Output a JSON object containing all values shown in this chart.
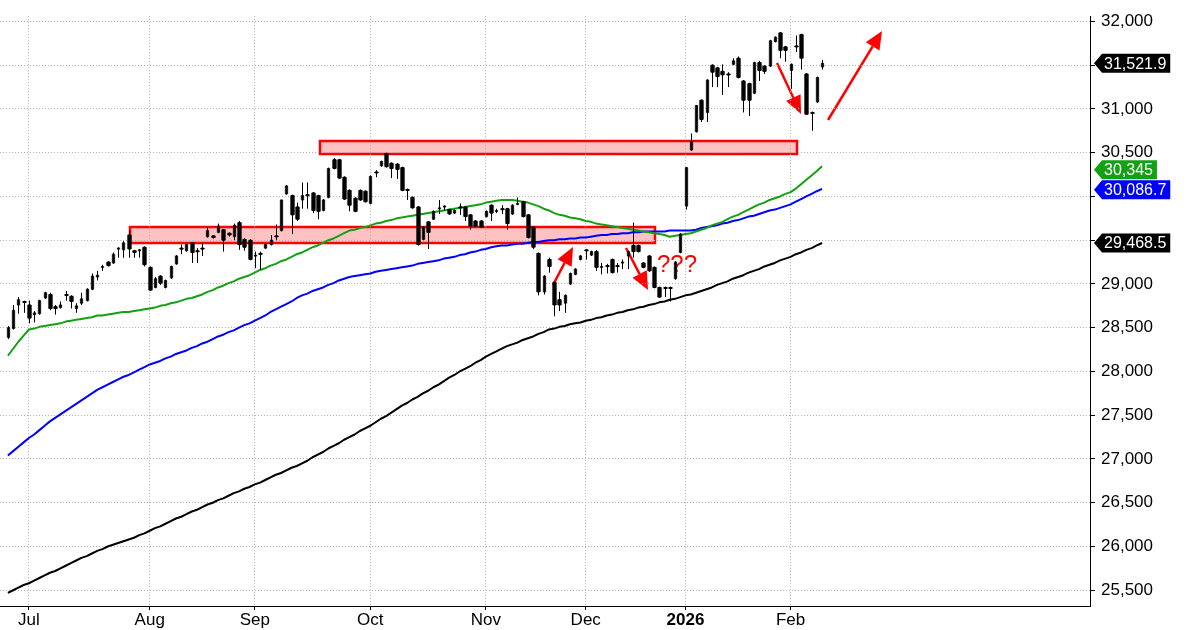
{
  "chart_data": {
    "type": "candlestick",
    "color": "#000000",
    "grid": true,
    "categories": [
      null,
      null,
      null,
      null,
      "Jul",
      null,
      null,
      null,
      null,
      null,
      null,
      null,
      null,
      null,
      null,
      null,
      null,
      null,
      null,
      null,
      null,
      null,
      null,
      null,
      null,
      null,
      null,
      "Aug",
      null,
      null,
      null,
      null,
      null,
      null,
      null,
      null,
      null,
      null,
      null,
      null,
      null,
      null,
      null,
      null,
      null,
      null,
      null,
      "Sep",
      null,
      null,
      null,
      null,
      null,
      null,
      null,
      null,
      null,
      null,
      null,
      null,
      null,
      null,
      null,
      null,
      null,
      null,
      null,
      null,
      null,
      "Oct",
      null,
      null,
      null,
      null,
      null,
      null,
      null,
      null,
      null,
      null,
      null,
      null,
      null,
      null,
      null,
      null,
      null,
      null,
      null,
      null,
      null,
      "Nov",
      null,
      null,
      null,
      null,
      null,
      null,
      null,
      null,
      null,
      null,
      null,
      null,
      null,
      null,
      null,
      null,
      null,
      null,
      "Dec",
      null,
      null,
      null,
      null,
      null,
      null,
      null,
      null,
      null,
      null,
      null,
      null,
      null,
      null,
      null,
      null,
      null,
      null,
      "2026",
      null,
      null,
      null,
      null,
      null,
      null,
      null,
      null,
      null,
      null,
      null,
      null,
      null,
      null,
      null,
      null,
      null,
      null,
      null,
      "Feb",
      null,
      null,
      null,
      null,
      null,
      null
    ],
    "ohlc": [
      [
        28390,
        28520,
        28370,
        28500
      ],
      [
        28490,
        28760,
        28480,
        28700
      ],
      [
        28760,
        28850,
        28660,
        28820
      ],
      [
        28800,
        28810,
        28670,
        28790
      ],
      [
        28760,
        28810,
        28550,
        28610
      ],
      [
        28650,
        28690,
        28560,
        28670
      ],
      [
        28660,
        28820,
        28650,
        28810
      ],
      [
        28840,
        28910,
        28830,
        28900
      ],
      [
        28880,
        28900,
        28700,
        28720
      ],
      [
        28740,
        28760,
        28650,
        28720
      ],
      [
        28730,
        28800,
        28720,
        28760
      ],
      [
        28880,
        28920,
        28810,
        28870
      ],
      [
        28860,
        28870,
        28720,
        28800
      ],
      [
        28720,
        28780,
        28670,
        28750
      ],
      [
        28780,
        28900,
        28760,
        28830
      ],
      [
        28810,
        28950,
        28800,
        28940
      ],
      [
        28940,
        29120,
        28930,
        29090
      ],
      [
        29080,
        29150,
        29040,
        29100
      ],
      [
        29190,
        29220,
        29150,
        29200
      ],
      [
        29250,
        29260,
        29200,
        29210
      ],
      [
        29240,
        29360,
        29230,
        29340
      ],
      [
        29400,
        29420,
        29300,
        29410
      ],
      [
        29390,
        29490,
        29300,
        29470
      ],
      [
        29560,
        29610,
        29300,
        29400
      ],
      [
        29380,
        29390,
        29300,
        29360
      ],
      [
        29380,
        29400,
        29300,
        29390
      ],
      [
        29420,
        29430,
        29200,
        29220
      ],
      [
        29190,
        29200,
        28920,
        28930
      ],
      [
        28960,
        29080,
        28950,
        29060
      ],
      [
        29090,
        29100,
        28990,
        29010
      ],
      [
        28960,
        29050,
        28950,
        29040
      ],
      [
        29070,
        29210,
        29060,
        29200
      ],
      [
        29230,
        29330,
        29220,
        29320
      ],
      [
        29410,
        29450,
        29340,
        29400
      ],
      [
        29380,
        29460,
        29370,
        29450
      ],
      [
        29470,
        29480,
        29240,
        29360
      ],
      [
        29380,
        29410,
        29240,
        29370
      ],
      [
        29410,
        29470,
        29320,
        29410
      ],
      [
        29540,
        29650,
        29530,
        29610
      ],
      [
        29550,
        29560,
        29520,
        29530
      ],
      [
        29590,
        29690,
        29580,
        29660
      ],
      [
        29620,
        29630,
        29370,
        29500
      ],
      [
        29580,
        29590,
        29540,
        29560
      ],
      [
        29540,
        29690,
        29500,
        29670
      ],
      [
        29700,
        29720,
        29390,
        29450
      ],
      [
        29510,
        29520,
        29380,
        29420
      ],
      [
        29500,
        29510,
        29270,
        29280
      ],
      [
        29320,
        29370,
        29180,
        29330
      ],
      [
        29350,
        29370,
        29160,
        29350
      ],
      [
        29410,
        29460,
        29400,
        29450
      ],
      [
        29450,
        29560,
        29440,
        29500
      ],
      [
        29550,
        29680,
        29500,
        29550
      ],
      [
        29610,
        29960,
        29600,
        29960
      ],
      [
        30030,
        30130,
        30020,
        30120
      ],
      [
        30010,
        30020,
        29570,
        29790
      ],
      [
        29880,
        29930,
        29720,
        29740
      ],
      [
        29960,
        30160,
        29860,
        30010
      ],
      [
        30020,
        30160,
        29860,
        30010
      ],
      [
        30040,
        30050,
        29810,
        29840
      ],
      [
        30010,
        30020,
        29740,
        29830
      ],
      [
        29840,
        29970,
        29830,
        29960
      ],
      [
        29990,
        30330,
        29980,
        30320
      ],
      [
        30420,
        30440,
        30310,
        30320
      ],
      [
        30420,
        30430,
        30200,
        30210
      ],
      [
        30220,
        30230,
        29960,
        29970
      ],
      [
        30070,
        30080,
        29830,
        29900
      ],
      [
        29980,
        29990,
        29820,
        29830
      ],
      [
        30070,
        30080,
        29950,
        29960
      ],
      [
        30060,
        30070,
        29930,
        29940
      ],
      [
        29920,
        30240,
        29910,
        30230
      ],
      [
        30280,
        30300,
        30220,
        30280
      ],
      [
        30350,
        30410,
        30340,
        30400
      ],
      [
        30490,
        30500,
        30330,
        30340
      ],
      [
        30380,
        30390,
        30210,
        30320
      ],
      [
        30370,
        30380,
        30200,
        30310
      ],
      [
        30330,
        30340,
        30060,
        30070
      ],
      [
        30080,
        30090,
        29960,
        30070
      ],
      [
        29990,
        30000,
        29860,
        29870
      ],
      [
        29880,
        29890,
        29440,
        29450
      ],
      [
        29510,
        29660,
        29500,
        29650
      ],
      [
        29710,
        29720,
        29400,
        29590
      ],
      [
        29740,
        29840,
        29730,
        29830
      ],
      [
        29860,
        29960,
        29800,
        29870
      ],
      [
        29880,
        29900,
        29840,
        29890
      ],
      [
        29850,
        29860,
        29790,
        29800
      ],
      [
        29810,
        29850,
        29800,
        29840
      ],
      [
        29880,
        29920,
        29790,
        29880
      ],
      [
        29880,
        29890,
        29720,
        29770
      ],
      [
        29790,
        29800,
        29620,
        29660
      ],
      [
        29720,
        29730,
        29650,
        29660
      ],
      [
        29720,
        29730,
        29640,
        29650
      ],
      [
        29770,
        29840,
        29760,
        29830
      ],
      [
        29900,
        29910,
        29720,
        29810
      ],
      [
        29830,
        29860,
        29810,
        29840
      ],
      [
        29860,
        29900,
        29800,
        29860
      ],
      [
        29860,
        29870,
        29620,
        29690
      ],
      [
        29800,
        29910,
        29790,
        29900
      ],
      [
        29910,
        29990,
        29900,
        29920
      ],
      [
        29940,
        29950,
        29760,
        29770
      ],
      [
        29790,
        29800,
        29520,
        29530
      ],
      [
        29650,
        29660,
        29400,
        29420
      ],
      [
        29350,
        29360,
        28870,
        28910
      ],
      [
        28910,
        29100,
        28880,
        29090
      ],
      [
        29280,
        29300,
        29130,
        29200
      ],
      [
        29020,
        29020,
        28630,
        28760
      ],
      [
        28820,
        28910,
        28690,
        28760
      ],
      [
        28780,
        28880,
        28670,
        28870
      ],
      [
        29000,
        29130,
        28990,
        29120
      ],
      [
        29110,
        29180,
        29100,
        29170
      ],
      [
        29280,
        29330,
        29270,
        29320
      ],
      [
        29390,
        29400,
        29280,
        29390
      ],
      [
        29330,
        29380,
        29320,
        29370
      ],
      [
        29370,
        29390,
        29150,
        29190
      ],
      [
        29190,
        29240,
        29110,
        29200
      ],
      [
        29210,
        29230,
        29120,
        29210
      ],
      [
        29280,
        29290,
        29120,
        29130
      ],
      [
        29210,
        29240,
        29130,
        29210
      ],
      [
        29240,
        29280,
        29170,
        29250
      ],
      [
        29320,
        29380,
        29170,
        29370
      ],
      [
        29440,
        29700,
        29300,
        29370
      ],
      [
        29440,
        29450,
        29360,
        29370
      ],
      [
        29240,
        29250,
        29180,
        29190
      ],
      [
        29320,
        29330,
        29140,
        29150
      ],
      [
        29190,
        29200,
        28950,
        28960
      ],
      [
        28960,
        28970,
        28840,
        28850
      ],
      [
        28960,
        28970,
        28850,
        28960
      ],
      [
        28960,
        28970,
        28800,
        28960
      ],
      [
        29060,
        29260,
        29050,
        29250
      ],
      [
        29360,
        29580,
        29350,
        29570
      ],
      [
        29890,
        30330,
        29850,
        30330
      ],
      [
        30530,
        30720,
        30520,
        30630
      ],
      [
        30740,
        31040,
        30730,
        31040
      ],
      [
        31100,
        31110,
        30850,
        30880
      ],
      [
        30960,
        31340,
        30850,
        31330
      ],
      [
        31500,
        31510,
        31250,
        31420
      ],
      [
        31470,
        31480,
        31250,
        31370
      ],
      [
        31430,
        31510,
        31160,
        31390
      ],
      [
        31400,
        31420,
        31250,
        31400
      ],
      [
        31510,
        31580,
        31500,
        31550
      ],
      [
        31580,
        31600,
        31350,
        31360
      ],
      [
        31320,
        31330,
        30960,
        31100
      ],
      [
        31290,
        31300,
        30920,
        31100
      ],
      [
        31180,
        31540,
        31170,
        31530
      ],
      [
        31530,
        31550,
        31320,
        31440
      ],
      [
        31490,
        31500,
        31400,
        31430
      ],
      [
        31490,
        31790,
        31480,
        31780
      ],
      [
        31770,
        31830,
        31760,
        31820
      ],
      [
        31870,
        31880,
        31580,
        31670
      ],
      [
        31710,
        31720,
        31540,
        31670
      ],
      [
        31440,
        31520,
        31230,
        31510
      ],
      [
        31720,
        31840,
        31650,
        31720
      ],
      [
        31850,
        31860,
        31450,
        31580
      ],
      [
        31400,
        31410,
        30930,
        30940
      ],
      [
        30960,
        30970,
        30750,
        30960
      ],
      [
        31080,
        31370,
        31070,
        31360
      ],
      [
        31480,
        31560,
        31450,
        31521.9
      ]
    ],
    "series": [
      {
        "type": "line",
        "color": "#14a014",
        "values": [
          28180,
          28260,
          28340,
          28410,
          28480,
          28490,
          28510,
          28520,
          28530,
          28540,
          28550,
          28570,
          28580,
          28590,
          28600,
          28610,
          28620,
          28640,
          28640,
          28650,
          28660,
          28670,
          28680,
          28680,
          28690,
          28700,
          28710,
          28720,
          28730,
          28750,
          28760,
          28780,
          28790,
          28810,
          28830,
          28840,
          28860,
          28880,
          28910,
          28930,
          28960,
          28980,
          29010,
          29030,
          29060,
          29080,
          29100,
          29130,
          29160,
          29180,
          29210,
          29230,
          29260,
          29280,
          29310,
          29340,
          29360,
          29390,
          29420,
          29440,
          29470,
          29500,
          29520,
          29550,
          29580,
          29610,
          29620,
          29640,
          29650,
          29670,
          29690,
          29700,
          29720,
          29730,
          29750,
          29760,
          29770,
          29780,
          29790,
          29800,
          29810,
          29820,
          29830,
          29840,
          29850,
          29860,
          29870,
          29880,
          29890,
          29900,
          29910,
          29930,
          29940,
          29950,
          29960,
          29960,
          29960,
          29950,
          29940,
          29930,
          29910,
          29890,
          29860,
          29840,
          29810,
          29790,
          29780,
          29760,
          29750,
          29740,
          29720,
          29710,
          29690,
          29680,
          29670,
          29660,
          29650,
          29640,
          29630,
          29620,
          29610,
          29600,
          29590,
          29580,
          29570,
          29560,
          29540,
          29550,
          29560,
          29570,
          29580,
          29600,
          29620,
          29640,
          29670,
          29690,
          29710,
          29740,
          29770,
          29790,
          29820,
          29850,
          29880,
          29910,
          29930,
          29960,
          29980,
          30000,
          30030,
          30050,
          30090,
          30140,
          30190,
          30240,
          30290,
          30345
        ]
      },
      {
        "type": "line",
        "color": "#0000ff",
        "values": [
          27040,
          27090,
          27140,
          27190,
          27240,
          27280,
          27330,
          27380,
          27430,
          27470,
          27510,
          27550,
          27590,
          27630,
          27670,
          27710,
          27750,
          27790,
          27820,
          27850,
          27880,
          27910,
          27940,
          27960,
          27990,
          28020,
          28050,
          28080,
          28100,
          28120,
          28150,
          28170,
          28200,
          28220,
          28240,
          28270,
          28290,
          28320,
          28340,
          28370,
          28400,
          28420,
          28450,
          28470,
          28500,
          28530,
          28550,
          28580,
          28610,
          28640,
          28680,
          28710,
          28740,
          28770,
          28800,
          28840,
          28870,
          28890,
          28920,
          28940,
          28960,
          28990,
          29010,
          29040,
          29060,
          29080,
          29090,
          29100,
          29110,
          29120,
          29140,
          29150,
          29160,
          29170,
          29180,
          29190,
          29200,
          29210,
          29230,
          29240,
          29250,
          29260,
          29270,
          29290,
          29300,
          29310,
          29330,
          29340,
          29360,
          29370,
          29390,
          29400,
          29420,
          29430,
          29440,
          29440,
          29450,
          29460,
          29460,
          29470,
          29480,
          29480,
          29490,
          29500,
          29500,
          29510,
          29510,
          29520,
          29520,
          29530,
          29530,
          29540,
          29550,
          29560,
          29560,
          29570,
          29570,
          29580,
          29580,
          29590,
          29590,
          29600,
          29600,
          29600,
          29600,
          29600,
          29610,
          29610,
          29610,
          29610,
          29610,
          29620,
          29640,
          29650,
          29660,
          29670,
          29690,
          29700,
          29720,
          29730,
          29750,
          29770,
          29780,
          29800,
          29820,
          29840,
          29850,
          29870,
          29890,
          29910,
          29940,
          29970,
          30000,
          30030,
          30060,
          30086.7
        ]
      },
      {
        "type": "line",
        "color": "#000000",
        "values": [
          25470,
          25500,
          25530,
          25560,
          25580,
          25610,
          25640,
          25670,
          25700,
          25720,
          25750,
          25780,
          25810,
          25840,
          25870,
          25890,
          25920,
          25950,
          25970,
          26000,
          26020,
          26040,
          26060,
          26080,
          26100,
          26130,
          26150,
          26180,
          26210,
          26230,
          26260,
          26290,
          26320,
          26340,
          26370,
          26400,
          26420,
          26450,
          26480,
          26500,
          26530,
          26550,
          26580,
          26610,
          26630,
          26660,
          26680,
          26710,
          26730,
          26760,
          26790,
          26820,
          26840,
          26870,
          26900,
          26920,
          26950,
          26980,
          27020,
          27050,
          27080,
          27120,
          27150,
          27180,
          27220,
          27250,
          27280,
          27320,
          27350,
          27380,
          27420,
          27460,
          27490,
          27530,
          27570,
          27610,
          27640,
          27680,
          27710,
          27750,
          27780,
          27820,
          27850,
          27890,
          27930,
          27960,
          28000,
          28030,
          28060,
          28100,
          28130,
          28170,
          28200,
          28230,
          28260,
          28290,
          28310,
          28330,
          28360,
          28380,
          28400,
          28430,
          28450,
          28480,
          28490,
          28510,
          28520,
          28540,
          28550,
          28560,
          28580,
          28590,
          28610,
          28620,
          28640,
          28650,
          28670,
          28680,
          28700,
          28710,
          28730,
          28740,
          28760,
          28770,
          28790,
          28800,
          28820,
          28830,
          28850,
          28870,
          28880,
          28900,
          28920,
          28940,
          28960,
          28990,
          29010,
          29030,
          29060,
          29080,
          29100,
          29130,
          29150,
          29170,
          29200,
          29220,
          29240,
          29270,
          29290,
          29310,
          29340,
          29360,
          29390,
          29410,
          29440,
          29468.5
        ]
      }
    ],
    "ylim": [
      25320,
      32060
    ],
    "yticks": [
      {
        "value": 25500,
        "label": "25,500"
      },
      {
        "value": 26000,
        "label": "26,000"
      },
      {
        "value": 26500,
        "label": "26,500"
      },
      {
        "value": 27000,
        "label": "27,000"
      },
      {
        "value": 27500,
        "label": "27,500"
      },
      {
        "value": 28000,
        "label": "28,000"
      },
      {
        "value": 28500,
        "label": "28,500"
      },
      {
        "value": 29000,
        "label": "29,000"
      },
      {
        "value": 29500,
        "label": null
      },
      {
        "value": 30000,
        "label": null
      },
      {
        "value": 30500,
        "label": "30,500"
      },
      {
        "value": 31000,
        "label": "31,000"
      },
      {
        "value": 31500,
        "label": null
      },
      {
        "value": 32000,
        "label": "32,000"
      }
    ],
    "annotations": [
      "???",
      "31,521.9",
      "30,345",
      "30,086.7",
      "29,468.5"
    ]
  }
}
